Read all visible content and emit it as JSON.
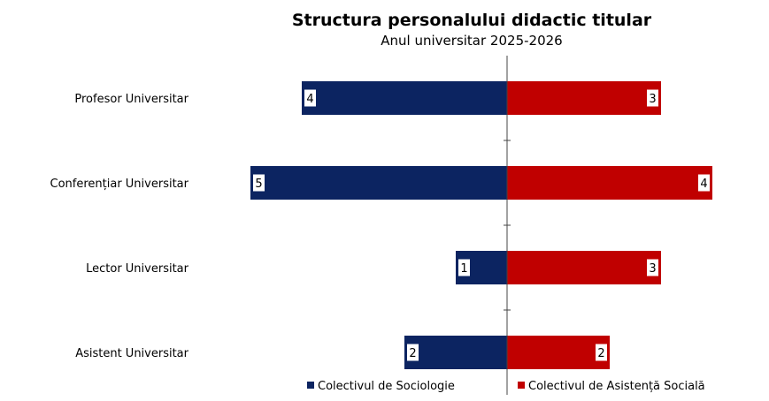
{
  "chart_data": {
    "type": "bar",
    "orientation": "horizontal-diverging",
    "title": "Structura personalului didactic titular",
    "subtitle": "Anul universitar 2025-2026",
    "categories": [
      "Profesor Universitar",
      "Conferențiar Universitar",
      "Lector Universitar",
      "Asistent Universitar"
    ],
    "series": [
      {
        "name": "Colectivul de Sociologie",
        "values": [
          4,
          5,
          1,
          2
        ],
        "color": "#0c2461",
        "direction": "left"
      },
      {
        "name": "Colectivul de Asistență Socială",
        "values": [
          3,
          4,
          3,
          2
        ],
        "color": "#c00000",
        "direction": "right"
      }
    ],
    "legend": "bottom",
    "grid": false
  }
}
